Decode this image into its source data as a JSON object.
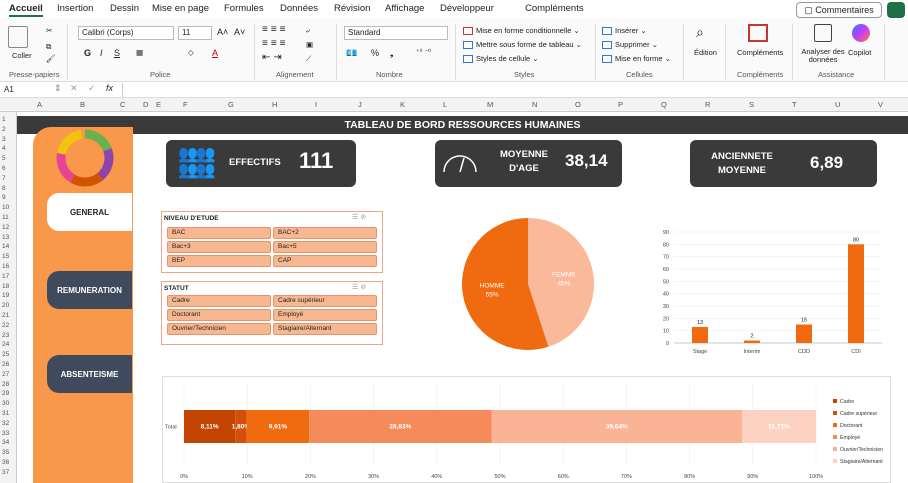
{
  "menu": [
    "Accueil",
    "Insertion",
    "Dessin",
    "Mise en page",
    "Formules",
    "Données",
    "Révision",
    "Affichage",
    "Développeur",
    "Compléments"
  ],
  "comments_label": "Commentaires",
  "ribbon": {
    "paste": "Coller",
    "font_name": "Calibri (Corps)",
    "font_size": "11",
    "number_format": "Standard",
    "cond_format": "Mise en forme conditionnelle",
    "table_format": "Mettre sous forme de tableau",
    "cell_styles": "Styles de cellule",
    "insert": "Insérer",
    "delete": "Supprimer",
    "format": "Mise en forme",
    "edit": "Édition",
    "addins": "Compléments",
    "analyze": "Analyser des données",
    "copilot": "Copilot",
    "groups": [
      "Presse-papiers",
      "Police",
      "Alignement",
      "Nombre",
      "Styles",
      "Cellules",
      "Compléments",
      "Assistance"
    ]
  },
  "namebox": "A1",
  "columns": [
    "A",
    "B",
    "C",
    "D",
    "E",
    "F",
    "G",
    "H",
    "I",
    "J",
    "K",
    "L",
    "M",
    "N",
    "O",
    "P",
    "Q",
    "R",
    "S",
    "T",
    "U",
    "V"
  ],
  "rows": [
    "1",
    "2",
    "3",
    "4",
    "5",
    "6",
    "7",
    "8",
    "9",
    "10",
    "11",
    "12",
    "13",
    "14",
    "15",
    "16",
    "17",
    "18",
    "19",
    "20",
    "21",
    "22",
    "23",
    "24",
    "25",
    "26",
    "27",
    "28",
    "29",
    "30",
    "31",
    "32",
    "33",
    "34",
    "35",
    "36",
    "37"
  ],
  "dashboard": {
    "title": "TABLEAU DE BORD RESSOURCES HUMAINES",
    "tabs": [
      "GENERAL",
      "REMUNERATION",
      "ABSENTEISME"
    ],
    "kpi_effectifs_label": "EFFECTIFS",
    "kpi_effectifs_value": "111",
    "kpi_age_label": "MOYENNE D'AGE",
    "kpi_age_value": "38,14",
    "kpi_anc_label": "ANCIENNETE MOYENNE",
    "kpi_anc_value": "6,89",
    "slicer_etude_title": "NIVEAU D'ETUDE",
    "slicer_etude_items": [
      "BAC",
      "BAC+2",
      "Bac+3",
      "Bac+5",
      "BEP",
      "CAP"
    ],
    "slicer_statut_title": "STATUT",
    "slicer_statut_items": [
      "Cadre",
      "Cadre supérieur",
      "Doctorant",
      "Employé",
      "Ouvrier/Technicien",
      "Stagiaire/Alternant"
    ]
  },
  "chart_data": [
    {
      "type": "pie",
      "labels": [
        "FEMME",
        "HOMME"
      ],
      "values": [
        45,
        55
      ],
      "colors": [
        "#f9b99a",
        "#f06b0f"
      ]
    },
    {
      "type": "bar",
      "categories": [
        "Stage",
        "Interim",
        "CDD",
        "CDI"
      ],
      "values": [
        13,
        2,
        15,
        80
      ],
      "ylim": [
        0,
        90
      ],
      "yticks": [
        "0",
        "10",
        "20",
        "30",
        "40",
        "50",
        "60",
        "70",
        "80",
        "90"
      ],
      "color": "#f06b0f"
    },
    {
      "type": "bar",
      "orientation": "horizontal-stacked",
      "category": "Total",
      "series": [
        {
          "name": "Cadre",
          "value": 8.11,
          "label": "8,11%",
          "color": "#c24400"
        },
        {
          "name": "Cadre supérieur",
          "value": 1.8,
          "label": "1,80%",
          "color": "#d4500a"
        },
        {
          "name": "Doctorant",
          "value": 9.91,
          "label": "9,91%",
          "color": "#f06b0f"
        },
        {
          "name": "Employé",
          "value": 28.83,
          "label": "28,83%",
          "color": "#f58a5a"
        },
        {
          "name": "Ouvrier/Technicien",
          "value": 39.64,
          "label": "39,64%",
          "color": "#fbb396"
        },
        {
          "name": "Stagiaire/Alternant",
          "value": 11.71,
          "label": "11,71%",
          "color": "#fcd3c2"
        }
      ],
      "xticks": [
        "0%",
        "10%",
        "20%",
        "30%",
        "40%",
        "50%",
        "60%",
        "70%",
        "80%",
        "90%",
        "100%"
      ]
    }
  ]
}
